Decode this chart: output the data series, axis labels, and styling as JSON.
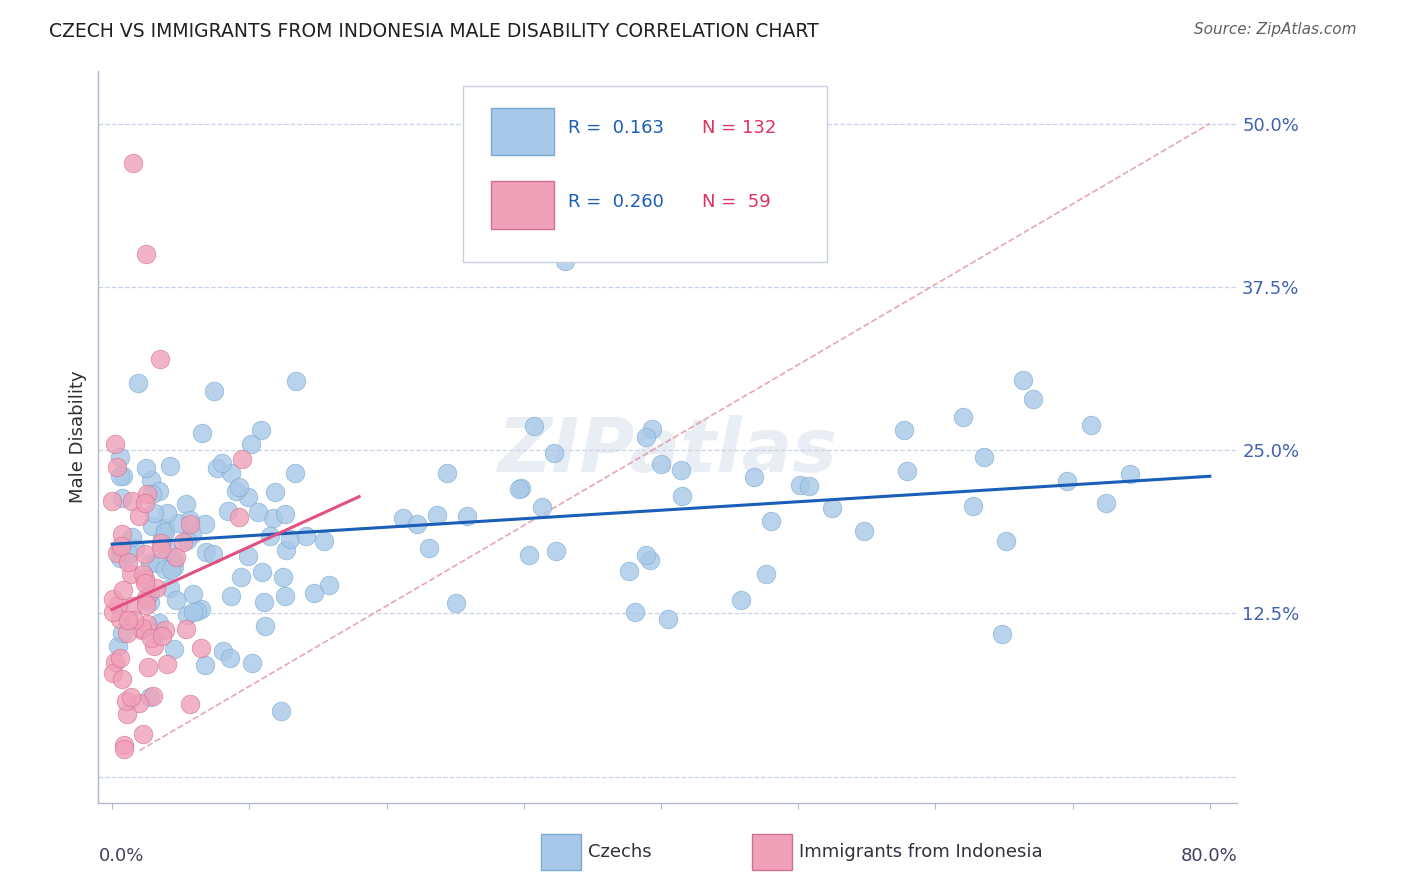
{
  "title": "CZECH VS IMMIGRANTS FROM INDONESIA MALE DISABILITY CORRELATION CHART",
  "source": "Source: ZipAtlas.com",
  "ylabel": "Male Disability",
  "y_ticks": [
    0.0,
    0.125,
    0.25,
    0.375,
    0.5
  ],
  "y_tick_labels": [
    "",
    "12.5%",
    "25.0%",
    "37.5%",
    "50.0%"
  ],
  "x_lim": [
    -0.01,
    0.82
  ],
  "y_lim": [
    -0.02,
    0.54
  ],
  "czechs_color": "#a8c8e8",
  "czechs_edge": "#7aaad0",
  "indonesia_color": "#f0a0b8",
  "indonesia_edge": "#d07090",
  "trend_czechs_color": "#1a5eb8",
  "trend_indonesia_color": "#e05080",
  "ref_line_color": "#e08090",
  "background_color": "#ffffff",
  "grid_color": "#c8d4e8",
  "legend_box_color": "#f0f4f8",
  "legend_border_color": "#c8d0dc",
  "r_value_color": "#1a5eb8",
  "n_value_color": "#e03060",
  "tick_label_color": "#4060b0",
  "ylabel_color": "#303030",
  "title_color": "#202020",
  "source_color": "#606060",
  "axis_color": "#b0b8c8",
  "czech_trend_intercept": 0.178,
  "czech_trend_slope": 0.065,
  "indo_trend_intercept": 0.128,
  "indo_trend_slope": 0.48,
  "indo_trend_xmax": 0.18,
  "ref_line_x0": 0.02,
  "ref_line_y0": 0.02,
  "ref_line_x1": 0.8,
  "ref_line_y1": 0.5
}
